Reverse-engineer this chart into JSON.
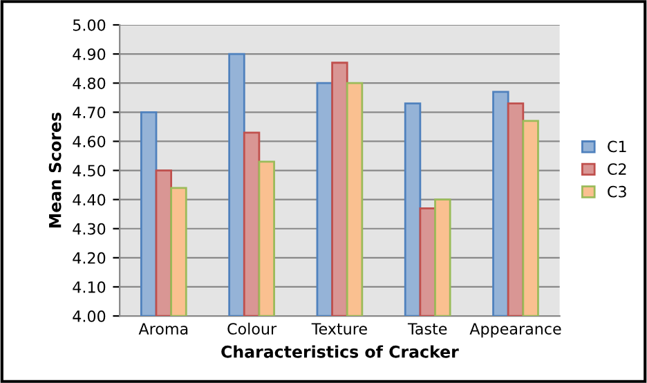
{
  "chart_data": {
    "type": "bar",
    "xlabel": "Characteristics of Cracker",
    "ylabel": "Mean Scores",
    "categories": [
      "Aroma",
      "Colour",
      "Texture",
      "Taste",
      "Appearance"
    ],
    "series": [
      {
        "name": "C1",
        "color": "#95b3d7",
        "values": [
          4.7,
          4.9,
          4.8,
          4.73,
          4.77
        ]
      },
      {
        "name": "C2",
        "color": "#d99694",
        "values": [
          4.5,
          4.63,
          4.87,
          4.37,
          4.73
        ]
      },
      {
        "name": "C3",
        "color": "#fac090",
        "values": [
          4.44,
          4.53,
          4.8,
          4.4,
          4.67
        ]
      }
    ],
    "ylim": [
      4.0,
      5.0
    ],
    "yticks": [
      {
        "value": 4.0,
        "label": "4.00"
      },
      {
        "value": 4.1,
        "label": "4.10"
      },
      {
        "value": 4.2,
        "label": "4.20"
      },
      {
        "value": 4.3,
        "label": "4.30"
      },
      {
        "value": 4.4,
        "label": "4.40"
      },
      {
        "value": 4.5,
        "label": "4.50"
      },
      {
        "value": 4.6,
        "label": "4.60"
      },
      {
        "value": 4.7,
        "label": "4.70"
      },
      {
        "value": 4.8,
        "label": "4.80"
      },
      {
        "value": 4.9,
        "label": "4.90"
      },
      {
        "value": 5.0,
        "label": "5.00"
      }
    ],
    "grid": "y",
    "legend": "right"
  }
}
